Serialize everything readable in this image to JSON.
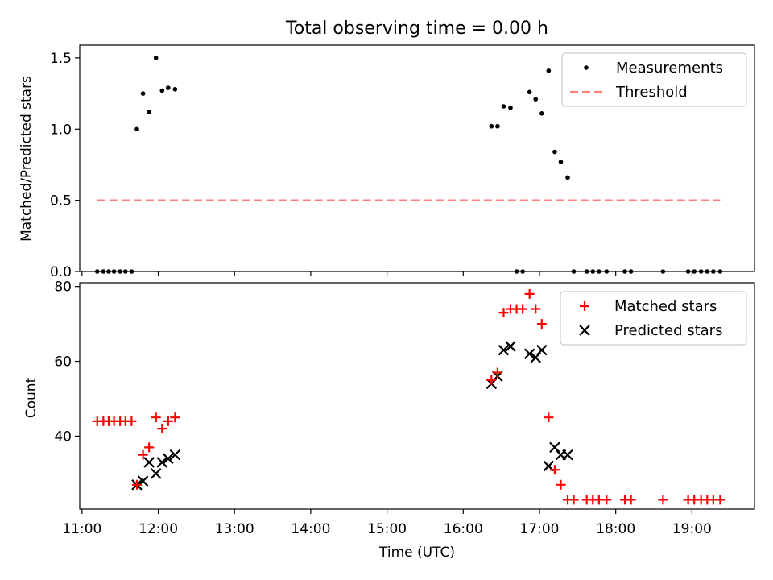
{
  "title": "Total observing time = 0.00 h",
  "colors": {
    "measurements": "#000000",
    "threshold": "#ff7f7f",
    "matched": "#ff0000",
    "predicted": "#000000"
  },
  "chart_data": [
    {
      "type": "scatter",
      "ylabel": "Matched/Predicted stars",
      "xlim": [
        10.97,
        19.82
      ],
      "ylim": [
        0,
        1.59
      ],
      "yticks": [
        0.0,
        0.5,
        1.0,
        1.5
      ],
      "ytick_labels": [
        "0.0",
        "0.5",
        "1.0",
        "1.5"
      ],
      "legend": {
        "position": "top-right",
        "entries": [
          "Measurements",
          "Threshold"
        ]
      },
      "series": [
        {
          "name": "Measurements",
          "marker": "dot",
          "x": [
            11.2,
            11.28,
            11.35,
            11.42,
            11.5,
            11.57,
            11.65,
            11.72,
            11.8,
            11.88,
            11.97,
            12.05,
            12.13,
            12.22,
            16.37,
            16.45,
            16.53,
            16.62,
            16.7,
            16.78,
            16.87,
            16.95,
            17.03,
            17.12,
            17.2,
            17.28,
            17.37,
            17.45,
            17.62,
            17.7,
            17.78,
            17.88,
            18.12,
            18.2,
            18.62,
            18.95,
            19.03,
            19.12,
            19.2,
            19.28,
            19.37
          ],
          "y": [
            0,
            0,
            0,
            0,
            0,
            0,
            0,
            1.0,
            1.25,
            1.12,
            1.5,
            1.27,
            1.29,
            1.28,
            1.02,
            1.02,
            1.16,
            1.15,
            0,
            0,
            1.26,
            1.21,
            1.11,
            1.41,
            0.84,
            0.77,
            0.66,
            0,
            0,
            0,
            0,
            0,
            0,
            0,
            0,
            0,
            0,
            0,
            0,
            0,
            0
          ]
        },
        {
          "name": "Threshold",
          "style": "dashed",
          "x": [
            11.2,
            19.37
          ],
          "y": [
            0.5,
            0.5
          ]
        }
      ]
    },
    {
      "type": "scatter",
      "xlabel": "Time (UTC)",
      "ylabel": "Count",
      "xlim": [
        10.97,
        19.82
      ],
      "ylim": [
        20.5,
        81
      ],
      "xticks": [
        11,
        12,
        13,
        14,
        15,
        16,
        17,
        18,
        19
      ],
      "xtick_labels": [
        "11:00",
        "12:00",
        "13:00",
        "14:00",
        "15:00",
        "16:00",
        "17:00",
        "18:00",
        "19:00"
      ],
      "yticks": [
        40,
        60,
        80
      ],
      "ytick_labels": [
        "40",
        "60",
        "80"
      ],
      "legend": {
        "position": "top-right",
        "entries": [
          "Matched stars",
          "Predicted stars"
        ]
      },
      "series": [
        {
          "name": "Matched stars",
          "marker": "plus",
          "x": [
            11.2,
            11.28,
            11.35,
            11.42,
            11.5,
            11.57,
            11.65,
            11.72,
            11.8,
            11.88,
            11.97,
            12.05,
            12.13,
            12.22,
            16.37,
            16.45,
            16.53,
            16.62,
            16.7,
            16.78,
            16.87,
            16.95,
            17.03,
            17.12,
            17.2,
            17.28,
            17.37,
            17.45,
            17.62,
            17.7,
            17.78,
            17.88,
            18.12,
            18.2,
            18.62,
            18.95,
            19.03,
            19.12,
            19.2,
            19.28,
            19.37
          ],
          "y": [
            44,
            44,
            44,
            44,
            44,
            44,
            44,
            27,
            35,
            37,
            45,
            42,
            44,
            45,
            55,
            57,
            73,
            74,
            74,
            74,
            78,
            74,
            70,
            45,
            31,
            27,
            23,
            23,
            23,
            23,
            23,
            23,
            23,
            23,
            23,
            23,
            23,
            23,
            23,
            23,
            23
          ]
        },
        {
          "name": "Predicted stars",
          "marker": "x",
          "x": [
            11.72,
            11.8,
            11.88,
            11.97,
            12.05,
            12.13,
            12.22,
            16.37,
            16.45,
            16.53,
            16.62,
            16.87,
            16.95,
            17.03,
            17.12,
            17.2,
            17.28,
            17.37
          ],
          "y": [
            27,
            28,
            33,
            30,
            33,
            34,
            35,
            54,
            56,
            63,
            64,
            62,
            61,
            63,
            32,
            37,
            35,
            35
          ]
        }
      ]
    }
  ]
}
